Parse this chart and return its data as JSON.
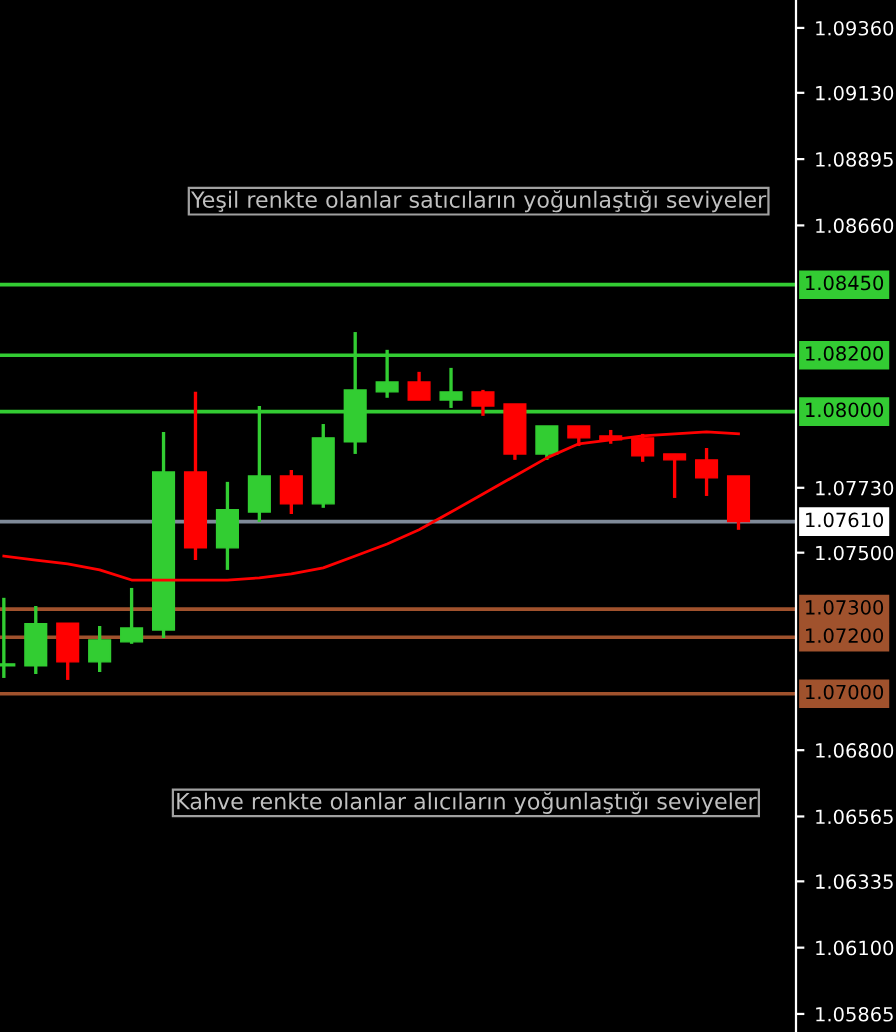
{
  "chart_data": {
    "type": "candlestick",
    "categories": [
      null,
      null,
      null,
      null,
      null,
      null,
      null,
      null,
      null,
      null,
      null,
      null,
      null,
      null,
      null,
      null,
      null,
      null,
      null,
      null,
      null,
      null,
      null,
      null
    ],
    "ohlc": [
      [
        1.07099,
        1.0734,
        1.07056,
        1.07106
      ],
      [
        1.07099,
        1.07311,
        1.0707,
        1.07248
      ],
      [
        1.0725,
        1.0725,
        1.07049,
        1.07113
      ],
      [
        1.07113,
        1.0724,
        1.07077,
        1.07191
      ],
      [
        1.07184,
        1.07375,
        1.07177,
        1.07233
      ],
      [
        1.07226,
        1.07928,
        1.07198,
        1.07786
      ],
      [
        1.07786,
        1.0807,
        1.07474,
        1.07517
      ],
      [
        1.07517,
        1.07751,
        1.07439,
        1.07652
      ],
      [
        1.07644,
        1.0802,
        1.07609,
        1.07772
      ],
      [
        1.07772,
        1.07793,
        1.07637,
        1.07673
      ],
      [
        1.07673,
        1.07956,
        1.07659,
        1.07907
      ],
      [
        1.07893,
        1.08282,
        1.0785,
        1.08077
      ],
      [
        1.0807,
        1.08219,
        1.08049,
        1.08105
      ],
      [
        1.08105,
        1.08141,
        1.08041,
        1.08041
      ],
      [
        1.08041,
        1.08155,
        1.08013,
        1.0807
      ],
      [
        1.0807,
        1.08077,
        1.07985,
        1.0802
      ],
      [
        1.08027,
        1.08027,
        1.07829,
        1.0785
      ],
      [
        1.0785,
        1.07949,
        1.07829,
        1.07949
      ],
      [
        1.07949,
        1.07949,
        1.07878,
        1.07907
      ],
      [
        1.07914,
        1.07935,
        1.07886,
        1.079
      ],
      [
        1.07907,
        1.07921,
        1.07822,
        1.07843
      ],
      [
        1.0785,
        1.0785,
        1.07694,
        1.07829
      ],
      [
        1.07829,
        1.07871,
        1.07701,
        1.07765
      ],
      [
        1.07772,
        1.07772,
        1.07581,
        1.0761
      ]
    ],
    "colors": [
      "#32cd32",
      "#32cd32",
      "#ff0000",
      "#32cd32",
      "#32cd32",
      "#32cd32",
      "#ff0000",
      "#32cd32",
      "#32cd32",
      "#ff0000",
      "#32cd32",
      "#32cd32",
      "#32cd32",
      "#ff0000",
      "#32cd32",
      "#ff0000",
      "#ff0000",
      "#32cd32",
      "#ff0000",
      "#ff0000",
      "#ff0000",
      "#ff0000",
      "#ff0000",
      "#ff0000"
    ],
    "series": [
      {
        "type": "line",
        "color": "#ff0000",
        "values": [
          1.07488,
          1.07474,
          1.0746,
          1.07439,
          1.07403,
          1.07403,
          1.07403,
          1.07403,
          1.07411,
          1.07425,
          1.07446,
          1.07488,
          1.07531,
          1.07581,
          1.07644,
          1.07708,
          1.07772,
          1.07836,
          1.07886,
          1.079,
          1.07914,
          1.07921,
          1.07928,
          1.07921
        ]
      }
    ],
    "ylim": [
      1.05801,
      1.09459
    ],
    "yticks": [
      {
        "value": 1.0936,
        "label": "1.09360"
      },
      {
        "value": 1.0913,
        "label": "1.09130"
      },
      1.08895,
      {
        "value": 1.0866,
        "label": "1.08660"
      },
      {
        "value": 1.0773,
        "label": "1.07730"
      },
      {
        "value": 1.075,
        "label": "1.07500"
      },
      {
        "value": 1.068,
        "label": "1.06800"
      },
      1.06565,
      1.06335,
      {
        "value": 1.061,
        "label": "1.06100"
      },
      1.05865
    ],
    "ref_lines": [
      {
        "axis": "y",
        "value": 1.0845,
        "label": "1.08450",
        "color": "#33cc33"
      },
      {
        "axis": "y",
        "value": 1.082,
        "label": "1.08200",
        "color": "#33cc33"
      },
      {
        "axis": "y",
        "value": 1.08,
        "label": "1.08000",
        "color": "#33cc33"
      },
      {
        "axis": "y",
        "value": 1.0761,
        "label": "1.07610",
        "color": "#7f8a99"
      },
      {
        "axis": "y",
        "value": 1.073,
        "label": "1.07300",
        "color": "#a0522d"
      },
      {
        "axis": "y",
        "value": 1.072,
        "label": "1.07200",
        "color": "#a0522d"
      },
      {
        "axis": "y",
        "value": 1.07,
        "label": "1.07000",
        "color": "#a0522d"
      }
    ],
    "annotations": [
      "Yeşil renkte olanlar satıcıların yoğunlaştığı seviyeler",
      "Kahve renkte olanlar alıcıların yoğunlaştığı seviyeler"
    ],
    "grid": false,
    "legend": false
  }
}
